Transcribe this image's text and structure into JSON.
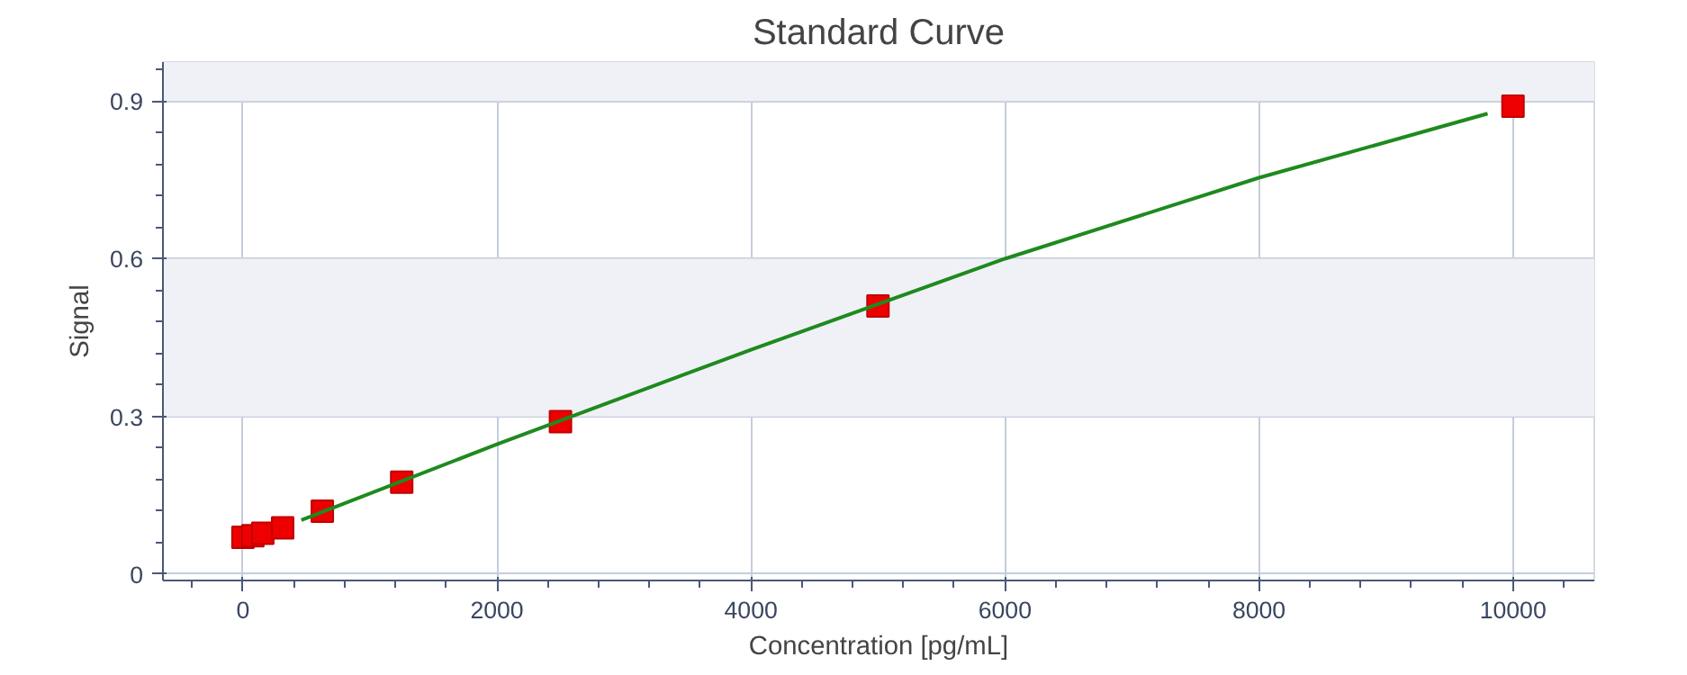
{
  "chart_data": {
    "type": "scatter",
    "title": "Standard Curve",
    "xlabel": "Concentration [pg/mL]",
    "ylabel": "Signal",
    "xlim": [
      -630,
      10640
    ],
    "ylim": [
      -0.012,
      0.974
    ],
    "xticks": [
      0,
      2000,
      4000,
      6000,
      8000,
      10000
    ],
    "yticks": [
      0,
      0.3,
      0.6,
      0.9
    ],
    "grid": true,
    "marker": "square",
    "bands": [
      {
        "axis": "y",
        "from": 0.3,
        "to": 0.6,
        "color": "#eff1f6"
      },
      {
        "axis": "y",
        "from": 0.9,
        "to": 0.974,
        "color": "#eff1f6"
      }
    ],
    "series": [
      {
        "color": "#ee0000",
        "x": [
          0,
          78,
          156,
          312.5,
          625,
          1250,
          2500,
          5000,
          10000
        ],
        "values": [
          0.07,
          0.073,
          0.078,
          0.088,
          0.12,
          0.175,
          0.29,
          0.51,
          0.89
        ]
      },
      {
        "type": "line",
        "marker": "none",
        "color": "#1e8a1e",
        "x": [
          460,
          2000,
          4000,
          6000,
          8000,
          9800
        ],
        "values": [
          0.103,
          0.247,
          0.427,
          0.6,
          0.754,
          0.876
        ]
      }
    ]
  }
}
